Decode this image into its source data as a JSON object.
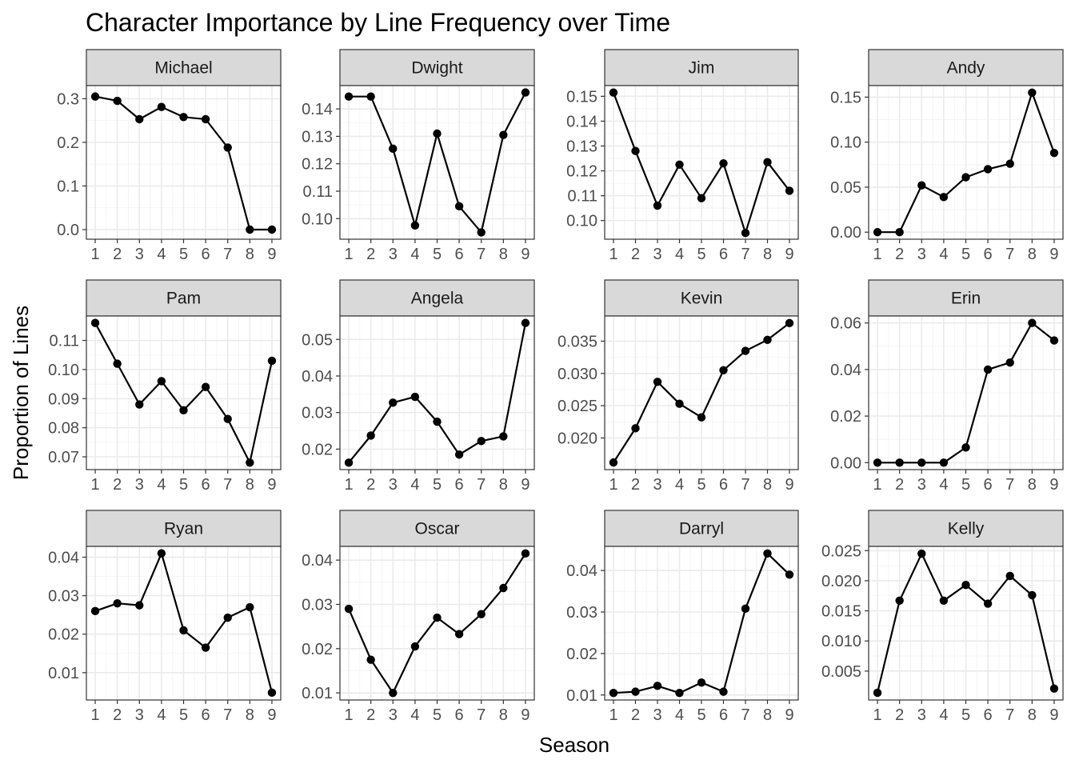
{
  "chart_data": {
    "type": "line",
    "title": "Character Importance by Line Frequency over Time",
    "xlabel": "Season",
    "ylabel": "Proportion of Lines",
    "grid": true,
    "x": [
      1,
      2,
      3,
      4,
      5,
      6,
      7,
      8,
      9
    ],
    "facets": [
      {
        "name": "Michael",
        "values": [
          0.305,
          0.295,
          0.253,
          0.281,
          0.258,
          0.253,
          0.188,
          0.0,
          0.0
        ],
        "ylim": [
          -0.022,
          0.33
        ],
        "yticks": [
          0.0,
          0.1,
          0.2,
          0.3
        ],
        "yticklabels": [
          "0.0",
          "0.1",
          "0.2",
          "0.3"
        ]
      },
      {
        "name": "Dwight",
        "values": [
          0.1445,
          0.1445,
          0.1255,
          0.0975,
          0.131,
          0.1045,
          0.095,
          0.1305,
          0.146
        ],
        "ylim": [
          0.0925,
          0.1485
        ],
        "yticks": [
          0.1,
          0.11,
          0.12,
          0.13,
          0.14
        ],
        "yticklabels": [
          "0.10",
          "0.11",
          "0.12",
          "0.13",
          "0.14"
        ]
      },
      {
        "name": "Jim",
        "values": [
          0.1515,
          0.128,
          0.106,
          0.1225,
          0.109,
          0.123,
          0.095,
          0.1235,
          0.112
        ],
        "ylim": [
          0.0925,
          0.1543
        ],
        "yticks": [
          0.1,
          0.11,
          0.12,
          0.13,
          0.14,
          0.15
        ],
        "yticklabels": [
          "0.10",
          "0.11",
          "0.12",
          "0.13",
          "0.14",
          "0.15"
        ]
      },
      {
        "name": "Andy",
        "values": [
          0.0,
          0.0,
          0.052,
          0.039,
          0.061,
          0.07,
          0.076,
          0.155,
          0.088
        ],
        "ylim": [
          -0.0078,
          0.1628
        ],
        "yticks": [
          0.0,
          0.05,
          0.1,
          0.15
        ],
        "yticklabels": [
          "0.00",
          "0.05",
          "0.10",
          "0.15"
        ]
      },
      {
        "name": "Pam",
        "values": [
          0.116,
          0.102,
          0.088,
          0.096,
          0.086,
          0.094,
          0.083,
          0.068,
          0.103
        ],
        "ylim": [
          0.0656,
          0.1184
        ],
        "yticks": [
          0.07,
          0.08,
          0.09,
          0.1,
          0.11
        ],
        "yticklabels": [
          "0.07",
          "0.08",
          "0.09",
          "0.10",
          "0.11"
        ]
      },
      {
        "name": "Angela",
        "values": [
          0.0163,
          0.0237,
          0.0327,
          0.0343,
          0.0275,
          0.0185,
          0.0222,
          0.0235,
          0.0545
        ],
        "ylim": [
          0.0144,
          0.0564
        ],
        "yticks": [
          0.02,
          0.03,
          0.04,
          0.05
        ],
        "yticklabels": [
          "0.02",
          "0.03",
          "0.04",
          "0.05"
        ]
      },
      {
        "name": "Kevin",
        "values": [
          0.0162,
          0.0215,
          0.0287,
          0.0253,
          0.0232,
          0.0305,
          0.0335,
          0.0352,
          0.0378
        ],
        "ylim": [
          0.0151,
          0.0389
        ],
        "yticks": [
          0.02,
          0.025,
          0.03,
          0.035
        ],
        "yticklabels": [
          "0.020",
          "0.025",
          "0.030",
          "0.035"
        ]
      },
      {
        "name": "Erin",
        "values": [
          0.0,
          0.0,
          0.0,
          0.0,
          0.0065,
          0.04,
          0.043,
          0.06,
          0.0525
        ],
        "ylim": [
          -0.003,
          0.063
        ],
        "yticks": [
          0.0,
          0.02,
          0.04,
          0.06
        ],
        "yticklabels": [
          "0.00",
          "0.02",
          "0.04",
          "0.06"
        ]
      },
      {
        "name": "Ryan",
        "values": [
          0.026,
          0.028,
          0.0275,
          0.041,
          0.021,
          0.0165,
          0.0243,
          0.027,
          0.0048
        ],
        "ylim": [
          0.0029,
          0.0428
        ],
        "yticks": [
          0.01,
          0.02,
          0.03,
          0.04
        ],
        "yticklabels": [
          "0.01",
          "0.02",
          "0.03",
          "0.04"
        ]
      },
      {
        "name": "Oscar",
        "values": [
          0.029,
          0.0175,
          0.01,
          0.0205,
          0.027,
          0.0233,
          0.0278,
          0.0337,
          0.0415
        ],
        "ylim": [
          0.0084,
          0.0431
        ],
        "yticks": [
          0.01,
          0.02,
          0.03,
          0.04
        ],
        "yticklabels": [
          "0.01",
          "0.02",
          "0.03",
          "0.04"
        ]
      },
      {
        "name": "Darryl",
        "values": [
          0.0105,
          0.0108,
          0.0122,
          0.0105,
          0.013,
          0.0108,
          0.0308,
          0.0441,
          0.039
        ],
        "ylim": [
          0.0088,
          0.0458
        ],
        "yticks": [
          0.01,
          0.02,
          0.03,
          0.04
        ],
        "yticklabels": [
          "0.01",
          "0.02",
          "0.03",
          "0.04"
        ]
      },
      {
        "name": "Kelly",
        "values": [
          0.0014,
          0.0167,
          0.0245,
          0.0167,
          0.0193,
          0.0162,
          0.0208,
          0.0176,
          0.0021
        ],
        "ylim": [
          0.0002,
          0.0257
        ],
        "yticks": [
          0.005,
          0.01,
          0.015,
          0.02,
          0.025
        ],
        "yticklabels": [
          "0.005",
          "0.010",
          "0.015",
          "0.020",
          "0.025"
        ]
      }
    ]
  }
}
